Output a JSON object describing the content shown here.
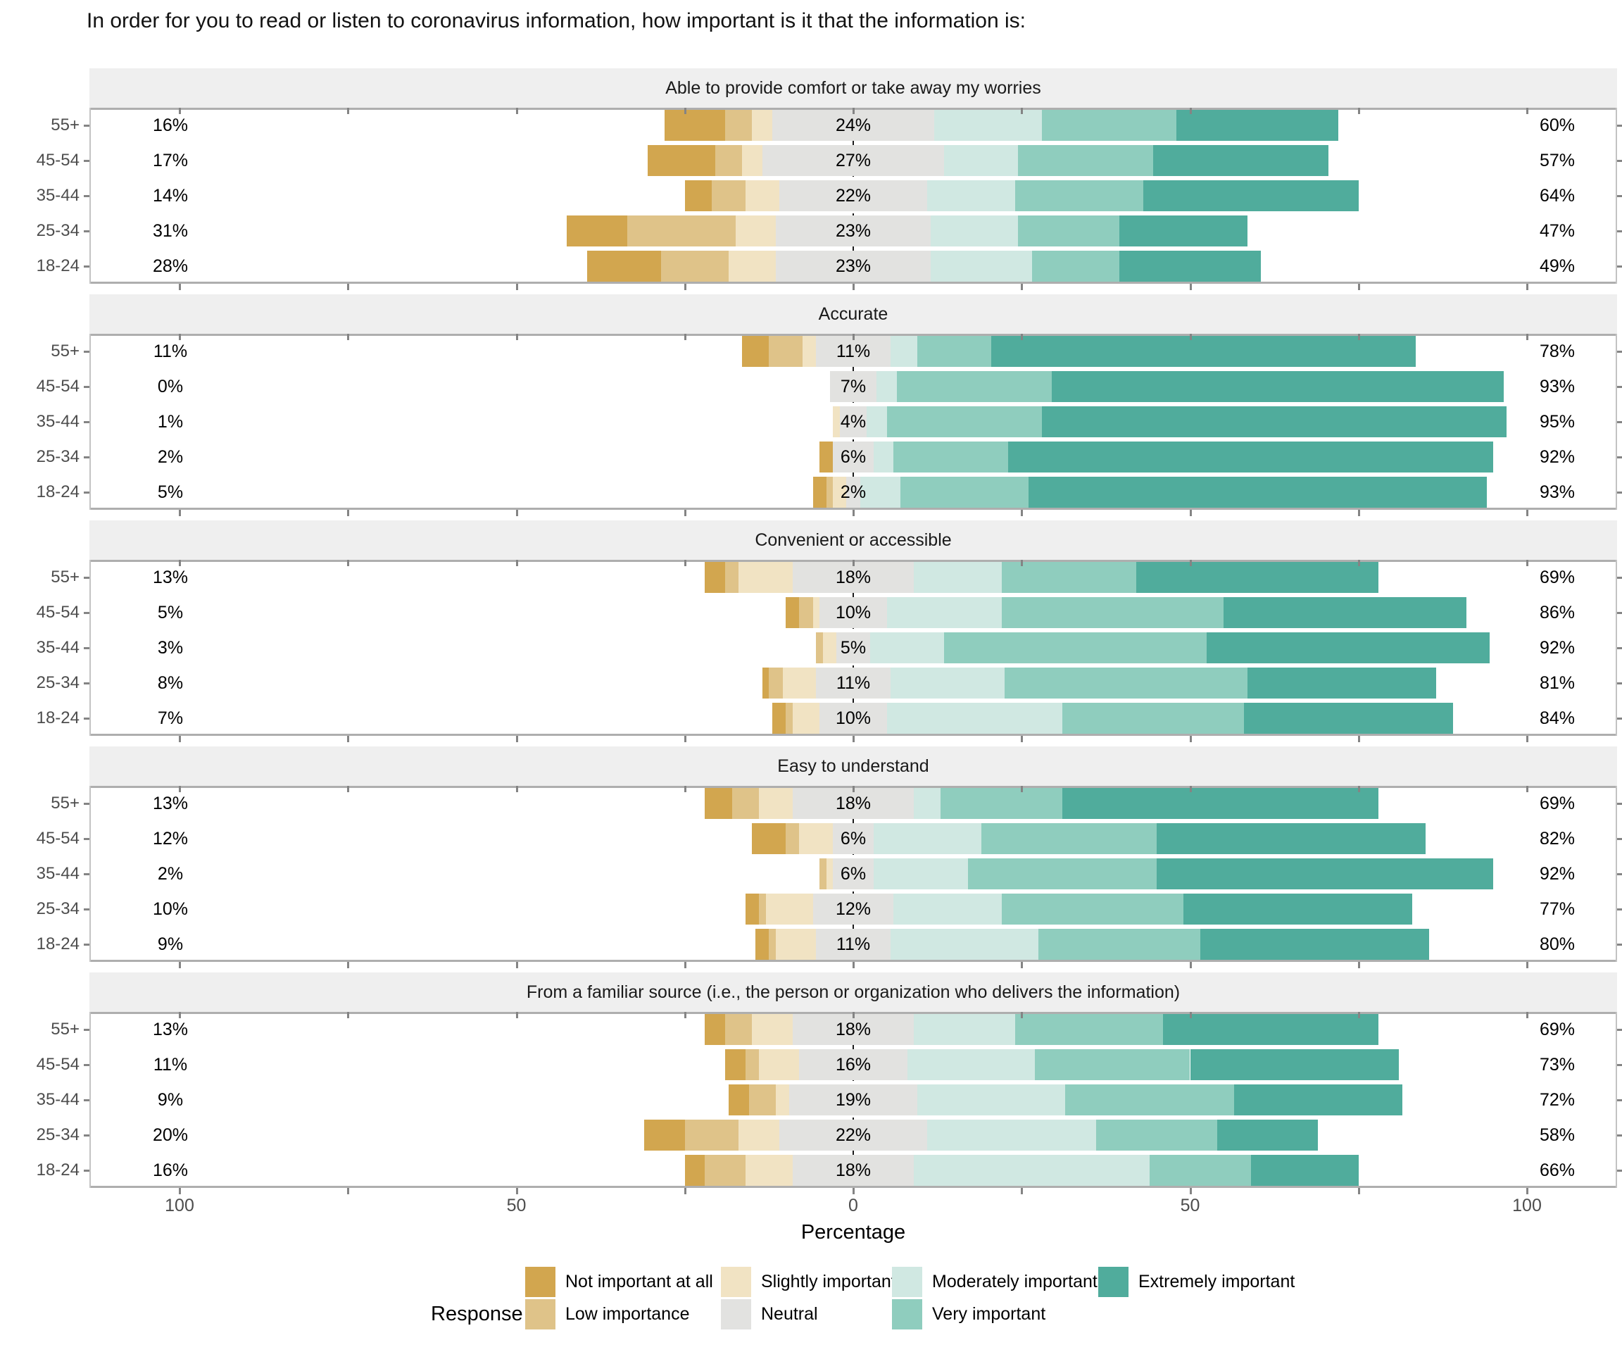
{
  "chart_data": {
    "type": "diverging-stacked-bar",
    "title": "In order for you to read or listen to coronavirus information, how important is it that the information is:",
    "xlabel": "Percentage",
    "x_axis": {
      "tick_labels": [
        "100",
        "50",
        "0",
        "50",
        "100"
      ],
      "tick_values": [
        -100,
        -50,
        0,
        50,
        100
      ],
      "minor_tick_step": 25,
      "range": [
        -113,
        113
      ]
    },
    "age_groups": [
      "55+",
      "45-54",
      "35-44",
      "25-34",
      "18-24"
    ],
    "response_levels": [
      "Not important at all",
      "Low importance",
      "Slightly important",
      "Neutral",
      "Moderately important",
      "Very important",
      "Extremely important"
    ],
    "colors": [
      "#D2A64F",
      "#DFC389",
      "#F1E3C3",
      "#E2E2E0",
      "#D0E8E2",
      "#8FCDBE",
      "#50AC9C"
    ],
    "neutral_centered_at_zero": true,
    "legend_title": "Response",
    "panels": [
      {
        "title": "Able to provide comfort or take away my worries",
        "rows": [
          {
            "group": "55+",
            "labels": {
              "neg": "16%",
              "neutral": "24%",
              "pos": "60%"
            },
            "segments": [
              9,
              4,
              3,
              24,
              16,
              20,
              24
            ]
          },
          {
            "group": "45-54",
            "labels": {
              "neg": "17%",
              "neutral": "27%",
              "pos": "57%"
            },
            "segments": [
              10,
              4,
              3,
              27,
              11,
              20,
              26
            ]
          },
          {
            "group": "35-44",
            "labels": {
              "neg": "14%",
              "neutral": "22%",
              "pos": "64%"
            },
            "segments": [
              4,
              5,
              5,
              22,
              13,
              19,
              32
            ]
          },
          {
            "group": "25-34",
            "labels": {
              "neg": "31%",
              "neutral": "23%",
              "pos": "47%"
            },
            "segments": [
              9,
              16,
              6,
              23,
              13,
              15,
              19
            ]
          },
          {
            "group": "18-24",
            "labels": {
              "neg": "28%",
              "neutral": "23%",
              "pos": "49%"
            },
            "segments": [
              11,
              10,
              7,
              23,
              15,
              13,
              21
            ]
          }
        ]
      },
      {
        "title": "Accurate",
        "rows": [
          {
            "group": "55+",
            "labels": {
              "neg": "11%",
              "neutral": "11%",
              "pos": "78%"
            },
            "segments": [
              4,
              5,
              2,
              11,
              4,
              11,
              63
            ]
          },
          {
            "group": "45-54",
            "labels": {
              "neg": "0%",
              "neutral": "7%",
              "pos": "93%"
            },
            "segments": [
              0,
              0,
              0,
              7,
              3,
              23,
              67
            ]
          },
          {
            "group": "35-44",
            "labels": {
              "neg": "1%",
              "neutral": "4%",
              "pos": "95%"
            },
            "segments": [
              0,
              0,
              1,
              4,
              3,
              23,
              69
            ]
          },
          {
            "group": "25-34",
            "labels": {
              "neg": "2%",
              "neutral": "6%",
              "pos": "92%"
            },
            "segments": [
              2,
              0,
              0,
              6,
              3,
              17,
              72
            ]
          },
          {
            "group": "18-24",
            "labels": {
              "neg": "5%",
              "neutral": "2%",
              "pos": "93%"
            },
            "segments": [
              2,
              1,
              2,
              2,
              6,
              19,
              68
            ]
          }
        ]
      },
      {
        "title": "Convenient or accessible",
        "rows": [
          {
            "group": "55+",
            "labels": {
              "neg": "13%",
              "neutral": "18%",
              "pos": "69%"
            },
            "segments": [
              3,
              2,
              8,
              18,
              13,
              20,
              36
            ]
          },
          {
            "group": "45-54",
            "labels": {
              "neg": "5%",
              "neutral": "10%",
              "pos": "86%"
            },
            "segments": [
              2,
              2,
              1,
              10,
              17,
              33,
              36
            ]
          },
          {
            "group": "35-44",
            "labels": {
              "neg": "3%",
              "neutral": "5%",
              "pos": "92%"
            },
            "segments": [
              0,
              1,
              2,
              5,
              11,
              39,
              42
            ]
          },
          {
            "group": "25-34",
            "labels": {
              "neg": "8%",
              "neutral": "11%",
              "pos": "81%"
            },
            "segments": [
              1,
              2,
              5,
              11,
              17,
              36,
              28
            ]
          },
          {
            "group": "18-24",
            "labels": {
              "neg": "7%",
              "neutral": "10%",
              "pos": "84%"
            },
            "segments": [
              2,
              1,
              4,
              10,
              26,
              27,
              31
            ]
          }
        ]
      },
      {
        "title": "Easy to understand",
        "rows": [
          {
            "group": "55+",
            "labels": {
              "neg": "13%",
              "neutral": "18%",
              "pos": "69%"
            },
            "segments": [
              4,
              4,
              5,
              18,
              4,
              18,
              47
            ]
          },
          {
            "group": "45-54",
            "labels": {
              "neg": "12%",
              "neutral": "6%",
              "pos": "82%"
            },
            "segments": [
              5,
              2,
              5,
              6,
              16,
              26,
              40
            ]
          },
          {
            "group": "35-44",
            "labels": {
              "neg": "2%",
              "neutral": "6%",
              "pos": "92%"
            },
            "segments": [
              0,
              1,
              1,
              6,
              14,
              28,
              50
            ]
          },
          {
            "group": "25-34",
            "labels": {
              "neg": "10%",
              "neutral": "12%",
              "pos": "77%"
            },
            "segments": [
              2,
              1,
              7,
              12,
              16,
              27,
              34
            ]
          },
          {
            "group": "18-24",
            "labels": {
              "neg": "9%",
              "neutral": "11%",
              "pos": "80%"
            },
            "segments": [
              2,
              1,
              6,
              11,
              22,
              24,
              34
            ]
          }
        ]
      },
      {
        "title": "From a familiar source (i.e., the person or organization who delivers the information)",
        "rows": [
          {
            "group": "55+",
            "labels": {
              "neg": "13%",
              "neutral": "18%",
              "pos": "69%"
            },
            "segments": [
              3,
              4,
              6,
              18,
              15,
              22,
              32
            ]
          },
          {
            "group": "45-54",
            "labels": {
              "neg": "11%",
              "neutral": "16%",
              "pos": "73%"
            },
            "segments": [
              3,
              2,
              6,
              16,
              19,
              23,
              31
            ]
          },
          {
            "group": "35-44",
            "labels": {
              "neg": "9%",
              "neutral": "19%",
              "pos": "72%"
            },
            "segments": [
              3,
              4,
              2,
              19,
              22,
              25,
              25
            ]
          },
          {
            "group": "25-34",
            "labels": {
              "neg": "20%",
              "neutral": "22%",
              "pos": "58%"
            },
            "segments": [
              6,
              8,
              6,
              22,
              25,
              18,
              15
            ]
          },
          {
            "group": "18-24",
            "labels": {
              "neg": "16%",
              "neutral": "18%",
              "pos": "66%"
            },
            "segments": [
              3,
              6,
              7,
              18,
              35,
              15,
              16
            ]
          }
        ]
      }
    ]
  }
}
